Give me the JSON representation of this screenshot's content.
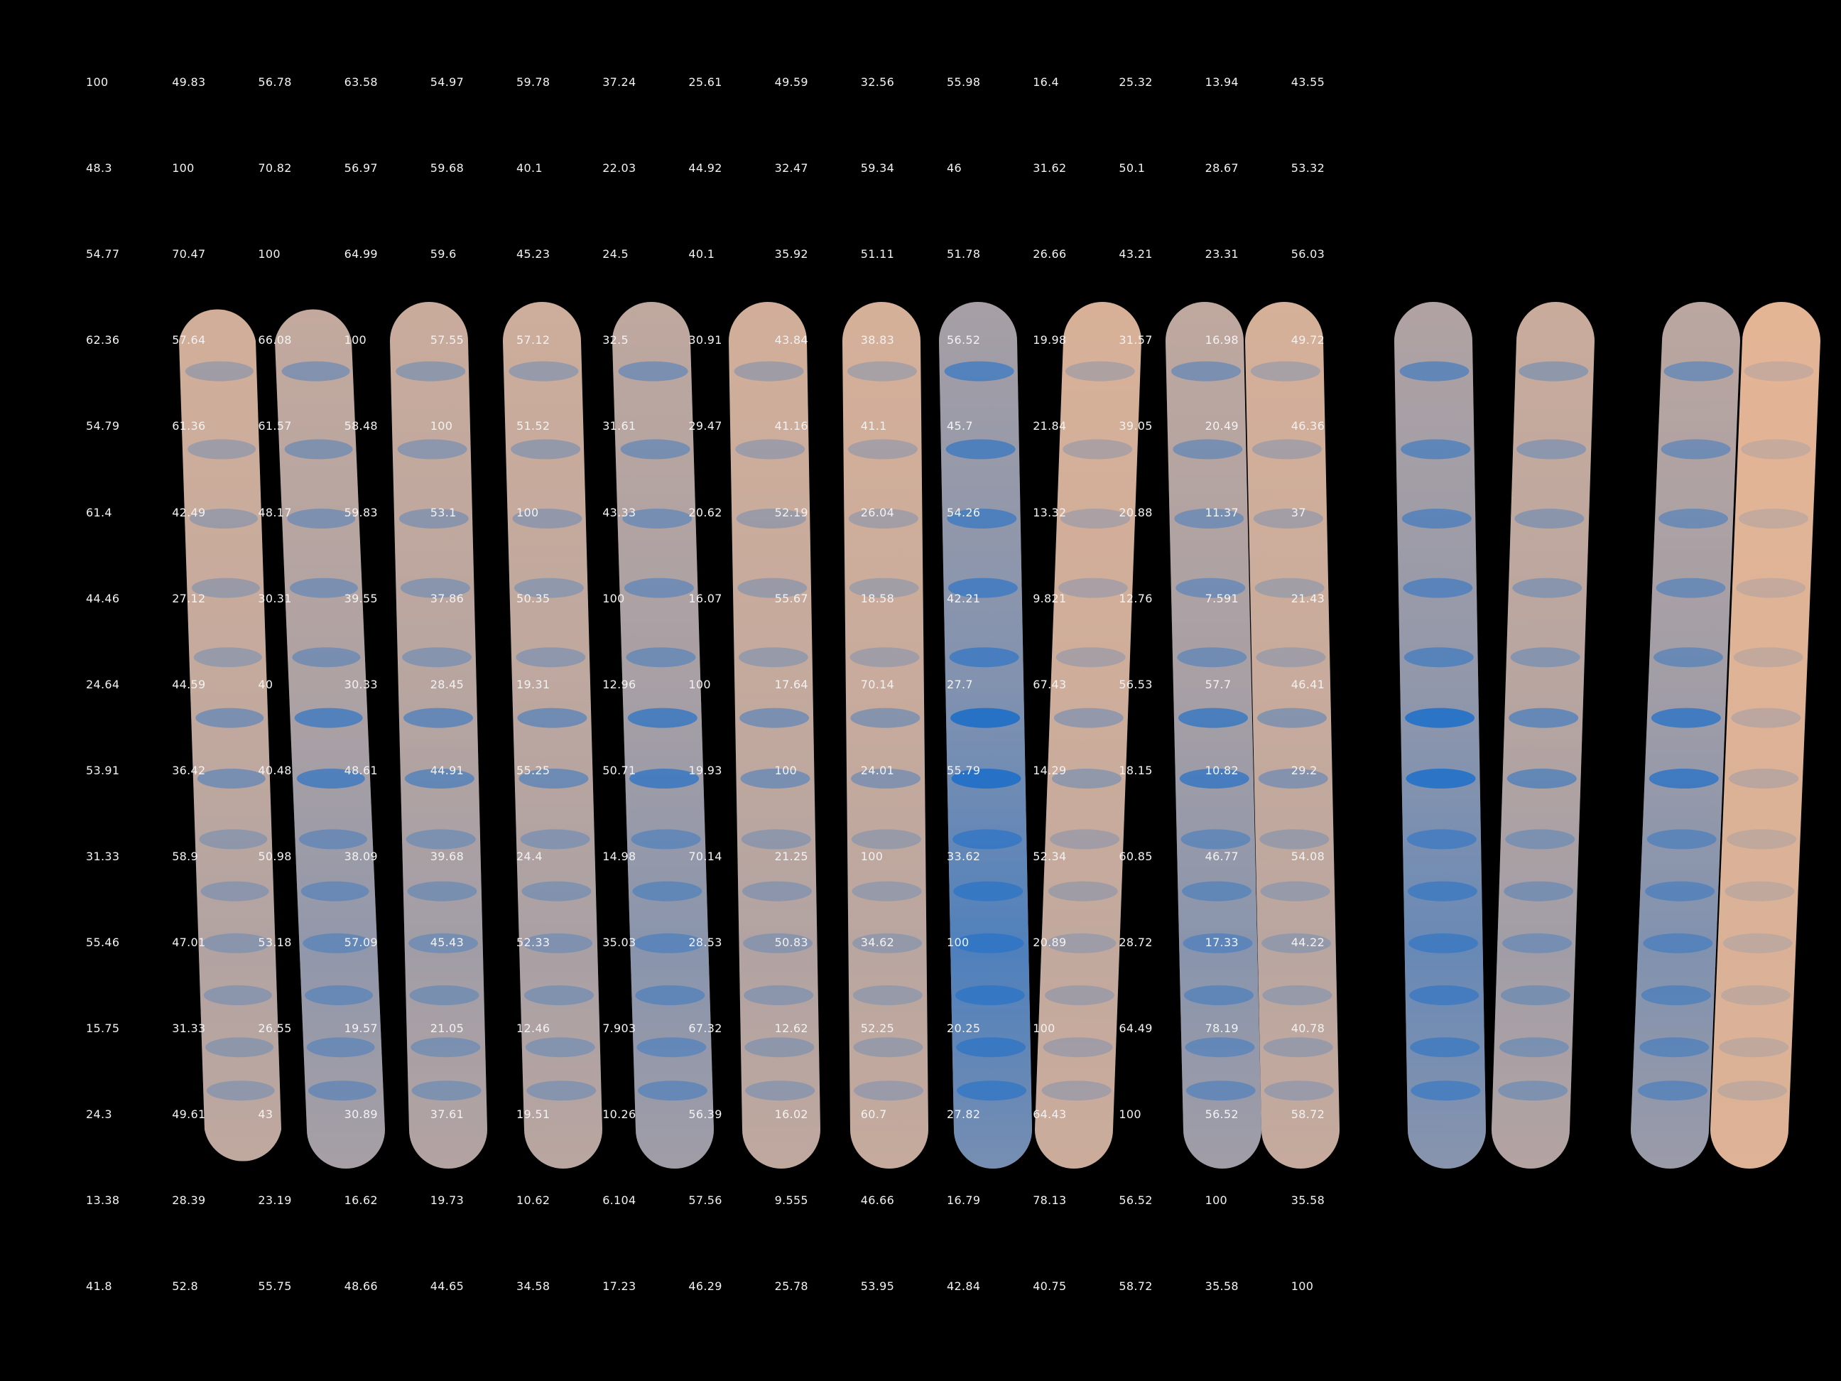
{
  "colors": {
    "background": "#000000",
    "lane_base": "#eab793",
    "stain": "#1f6fc9",
    "text": "#f2f2f2"
  },
  "lanes": [
    {
      "stain_level": 0.35
    },
    {
      "stain_level": 0.55
    },
    {
      "stain_level": 0.45
    },
    {
      "stain_level": 0.4
    },
    {
      "stain_level": 0.6
    },
    {
      "stain_level": 0.35
    },
    {
      "stain_level": 0.3
    },
    {
      "stain_level": 0.95
    },
    {
      "stain_level": 0.25
    },
    {
      "stain_level": 0.6
    },
    {
      "stain_level": 0.3
    },
    {
      "stain_level": 0.8
    },
    {
      "stain_level": 0.45
    },
    {
      "stain_level": 0.65
    },
    {
      "stain_level": 0.1
    }
  ],
  "matrix": {
    "rows": [
      [
        "100",
        "49.83",
        "56.78",
        "63.58",
        "54.97",
        "59.78",
        "37.24",
        "25.61",
        "49.59",
        "32.56",
        "55.98",
        "16.4",
        "25.32",
        "13.94",
        "43.55"
      ],
      [
        "48.3",
        "100",
        "70.82",
        "56.97",
        "59.68",
        "40.1",
        "22.03",
        "44.92",
        "32.47",
        "59.34",
        "46",
        "31.62",
        "50.1",
        "28.67",
        "53.32"
      ],
      [
        "54.77",
        "70.47",
        "100",
        "64.99",
        "59.6",
        "45.23",
        "24.5",
        "40.1",
        "35.92",
        "51.11",
        "51.78",
        "26.66",
        "43.21",
        "23.31",
        "56.03"
      ],
      [
        "62.36",
        "57.64",
        "66.08",
        "100",
        "57.55",
        "57.12",
        "32.5",
        "30.91",
        "43.84",
        "38.83",
        "56.52",
        "19.98",
        "31.57",
        "16.98",
        "49.72"
      ],
      [
        "54.79",
        "61.36",
        "61.57",
        "58.48",
        "100",
        "51.52",
        "31.61",
        "29.47",
        "41.16",
        "41.1",
        "45.7",
        "21.84",
        "39.05",
        "20.49",
        "46.36"
      ],
      [
        "61.4",
        "42.49",
        "48.17",
        "59.83",
        "53.1",
        "100",
        "43.33",
        "20.62",
        "52.19",
        "26.04",
        "54.26",
        "13.32",
        "20.88",
        "11.37",
        "37"
      ],
      [
        "44.46",
        "27.12",
        "30.31",
        "39.55",
        "37.86",
        "50.35",
        "100",
        "16.07",
        "55.67",
        "18.58",
        "42.21",
        "9.821",
        "12.76",
        "7.591",
        "21.43"
      ],
      [
        "24.64",
        "44.59",
        "40",
        "30.33",
        "28.45",
        "19.31",
        "12.96",
        "100",
        "17.64",
        "70.14",
        "27.7",
        "67.43",
        "56.53",
        "57.7",
        "46.41"
      ],
      [
        "53.91",
        "36.42",
        "40.48",
        "48.61",
        "44.91",
        "55.25",
        "50.71",
        "19.93",
        "100",
        "24.01",
        "55.79",
        "14.29",
        "18.15",
        "10.82",
        "29.2"
      ],
      [
        "31.33",
        "58.9",
        "50.98",
        "38.09",
        "39.68",
        "24.4",
        "14.98",
        "70.14",
        "21.25",
        "100",
        "33.62",
        "52.34",
        "60.85",
        "46.77",
        "54.08"
      ],
      [
        "55.46",
        "47.01",
        "53.18",
        "57.09",
        "45.43",
        "52.33",
        "35.03",
        "28.53",
        "50.83",
        "34.62",
        "100",
        "20.89",
        "28.72",
        "17.33",
        "44.22"
      ],
      [
        "15.75",
        "31.33",
        "26.55",
        "19.57",
        "21.05",
        "12.46",
        "7.903",
        "67.32",
        "12.62",
        "52.25",
        "20.25",
        "100",
        "64.49",
        "78.19",
        "40.78"
      ],
      [
        "24.3",
        "49.61",
        "43",
        "30.89",
        "37.61",
        "19.51",
        "10.26",
        "56.39",
        "16.02",
        "60.7",
        "27.82",
        "64.43",
        "100",
        "56.52",
        "58.72"
      ],
      [
        "13.38",
        "28.39",
        "23.19",
        "16.62",
        "19.73",
        "10.62",
        "6.104",
        "57.56",
        "9.555",
        "46.66",
        "16.79",
        "78.13",
        "56.52",
        "100",
        "35.58"
      ],
      [
        "41.8",
        "52.8",
        "55.75",
        "48.66",
        "44.65",
        "34.58",
        "17.23",
        "46.29",
        "25.78",
        "53.95",
        "42.84",
        "40.75",
        "58.72",
        "35.58",
        "100"
      ]
    ]
  }
}
